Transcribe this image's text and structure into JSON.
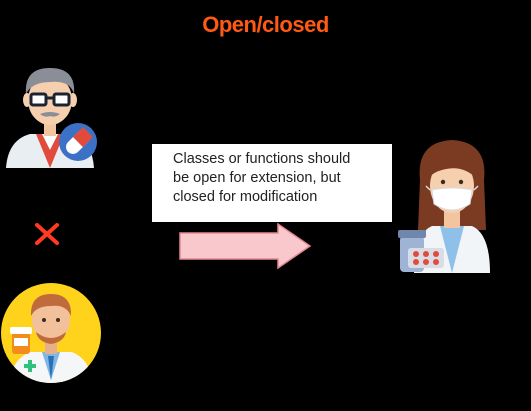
{
  "title": "Open/closed",
  "note": {
    "lines": [
      "Classes or functions should",
      "be open for extension, but",
      "closed for modification"
    ]
  },
  "colors": {
    "title": "#ff5a14",
    "cross": "#ff3b1f",
    "arrow_fill": "#f8c8cc",
    "arrow_stroke": "#e58791",
    "background": "#000000",
    "pharmacist_bg": "#ffd21c"
  },
  "icons": {
    "old_doctor": "doctor-with-pill-icon",
    "cross": "cross-mark-icon",
    "pharmacist": "pharmacist-with-medicine-icon",
    "arrow": "right-arrow-icon",
    "result": "masked-female-doctor-icon"
  }
}
